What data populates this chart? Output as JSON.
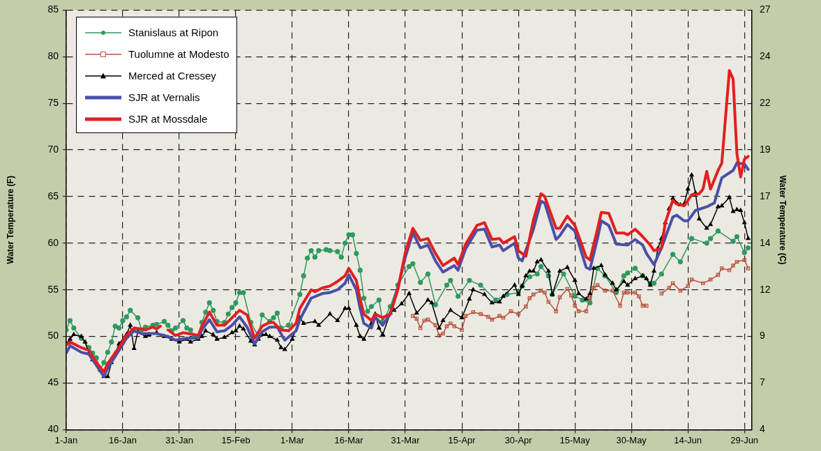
{
  "chart_data": {
    "type": "line",
    "ylabel": "Water Temperature (F)",
    "y2label": "Water Temperature (C)",
    "xlim": [
      "--01-01",
      "--07-01"
    ],
    "xticks": [
      {
        "value": "--01-01",
        "label": "1-Jan"
      },
      {
        "value": "--01-16",
        "label": "16-Jan"
      },
      {
        "value": "--01-31",
        "label": "31-Jan"
      },
      {
        "value": "--02-15",
        "label": "15-Feb"
      },
      {
        "value": "--03-01",
        "label": "1-Mar"
      },
      {
        "value": "--03-16",
        "label": "16-Mar"
      },
      {
        "value": "--03-31",
        "label": "31-Mar"
      },
      {
        "value": "--04-15",
        "label": "15-Apr"
      },
      {
        "value": "--04-30",
        "label": "30-Apr"
      },
      {
        "value": "--05-15",
        "label": "15-May"
      },
      {
        "value": "--05-30",
        "label": "30-May"
      },
      {
        "value": "--06-14",
        "label": "14-Jun"
      },
      {
        "value": "--06-29",
        "label": "29-Jun"
      }
    ],
    "ylim": [
      40,
      85
    ],
    "yticks": [
      40,
      45,
      50,
      55,
      60,
      65,
      70,
      75,
      80,
      85
    ],
    "y2lim": [
      4.4,
      26.9
    ],
    "y2ticks": [
      {
        "value": 4.4,
        "label": "4"
      },
      {
        "value": 6.9,
        "label": "7"
      },
      {
        "value": 9.4,
        "label": "9"
      },
      {
        "value": 11.9,
        "label": "12"
      },
      {
        "value": 14.4,
        "label": "14"
      },
      {
        "value": 16.9,
        "label": "17"
      },
      {
        "value": 19.4,
        "label": "19"
      },
      {
        "value": 21.9,
        "label": "22"
      },
      {
        "value": 24.4,
        "label": "24"
      },
      {
        "value": 26.9,
        "label": "27"
      }
    ],
    "grid": true,
    "legend": "top left",
    "line_style": "solid",
    "series": [
      {
        "name": "Stanislaus at Ripon",
        "color": "#2e9a5e",
        "marker": "circle",
        "x": [
          "--01-01",
          "--01-02",
          "--01-03",
          "--01-05",
          "--01-07",
          "--01-08",
          "--01-09",
          "--01-10",
          "--01-11",
          "--01-12",
          "--01-13",
          "--01-14",
          "--01-15",
          "--01-16",
          "--01-17",
          "--01-18",
          "--01-20",
          "--01-21",
          "--01-22",
          "--01-24",
          "--01-25",
          "--01-27",
          "--01-28",
          "--01-29",
          "--01-30",
          "--02-01",
          "--02-02",
          "--02-03",
          "--02-04",
          "--02-05",
          "--02-06",
          "--02-07",
          "--02-08",
          "--02-09",
          "--02-10",
          "--02-12",
          "--02-13",
          "--02-14",
          "--02-15",
          "--02-16",
          "--02-17",
          "--02-19",
          "--02-21",
          "--02-22",
          "--02-24",
          "--02-25",
          "--02-26",
          "--02-27",
          "--02-29",
          "--03-03",
          "--03-04",
          "--03-05",
          "--03-06",
          "--03-07",
          "--03-08",
          "--03-10",
          "--03-11",
          "--03-13",
          "--03-14",
          "--03-15",
          "--03-16",
          "--03-17",
          "--03-18",
          "--03-19",
          "--03-20",
          "--03-21",
          "--03-22",
          "--03-24",
          "--03-25",
          "--03-27",
          "--03-29",
          "--04-01",
          "--04-02",
          "--04-04",
          "--04-06",
          "--04-08",
          "--04-11",
          "--04-12",
          "--04-14",
          "--04-17",
          "--04-20",
          "--04-24",
          "--04-27",
          "--04-30",
          "--05-01",
          "--05-03",
          "--05-05",
          "--05-06",
          "--05-08",
          "--05-09",
          "--05-12",
          "--05-15",
          "--05-17",
          "--05-19",
          "--05-21",
          "--05-23",
          "--05-26",
          "--05-28",
          "--05-29",
          "--05-31",
          "--06-02",
          "--06-04",
          "--06-05",
          "--06-07",
          "--06-10",
          "--06-12",
          "--06-15",
          "--06-19",
          "--06-20",
          "--06-22",
          "--06-26",
          "--06-27",
          "--06-29",
          "--06-30"
        ],
        "values": [
          50.7,
          51.7,
          50.9,
          49.8,
          48.8,
          48.2,
          47.7,
          46.4,
          47.2,
          48.3,
          49.4,
          51.1,
          50.9,
          51.7,
          52.1,
          52.8,
          52,
          50.7,
          51,
          51.2,
          51.3,
          51.6,
          51.2,
          50.6,
          50.9,
          51.7,
          50.9,
          50.7,
          50,
          50,
          51.5,
          52.6,
          53.6,
          52.8,
          51.6,
          51.5,
          52.4,
          53.1,
          53.6,
          54.7,
          54.7,
          51.5,
          50,
          52.3,
          51.6,
          52,
          52.5,
          50.9,
          51.2,
          54.5,
          56.5,
          58.4,
          59.2,
          58.5,
          59.2,
          59.3,
          59.2,
          59.1,
          58.5,
          60,
          60.9,
          60.9,
          58.9,
          57.1,
          54.1,
          52.7,
          53.2,
          53.9,
          51.6,
          53.2,
          55.5,
          57.5,
          57.8,
          55.8,
          56.7,
          53.4,
          55.5,
          56,
          54.3,
          56,
          55.5,
          53.9,
          54.5,
          54.7,
          55.4,
          56.4,
          56.7,
          57.5,
          56.5,
          54.5,
          56.7,
          54.3,
          53.9,
          53.6,
          57.3,
          56.5,
          54.7,
          56.5,
          56.8,
          57.3,
          56.5,
          55.7,
          55.7,
          56.7,
          58.8,
          58,
          60.5,
          60,
          60.5,
          61.3,
          60.2,
          60.7,
          59,
          59.5
        ]
      },
      {
        "name": "Tuolumne at Modesto",
        "color": "#b5523a",
        "marker": "square",
        "x": [
          "--04-02",
          "--04-03",
          "--04-04",
          "--04-05",
          "--04-06",
          "--04-08",
          "--04-09",
          "--04-10",
          "--04-11",
          "--04-12",
          "--04-13",
          "--04-15",
          "--04-16",
          "--04-18",
          "--04-20",
          "--04-22",
          "--04-23",
          "--04-25",
          "--04-26",
          "--04-28",
          "--04-30",
          "--05-02",
          "--05-03",
          "--05-04",
          "--05-06",
          "--05-07",
          "--05-08",
          "--05-10",
          "--05-11",
          "--05-13",
          "--05-14",
          "--05-15",
          "--05-16",
          "--05-18",
          "--05-19",
          "--05-20",
          "--05-21",
          "--05-23",
          "--05-25",
          "--05-27",
          "--05-28",
          "--05-29",
          "--05-31",
          "--06-01",
          "--06-02",
          "--06-03",
          "--06-05",
          "--06-07",
          "--06-09",
          "--06-10",
          "--06-12",
          "--06-14",
          "--06-15",
          "--06-18",
          "--06-20",
          "--06-22",
          "--06-23",
          "--06-25",
          "--06-26",
          "--06-27",
          "--06-29",
          "--06-30"
        ],
        "values": [
          52.2,
          51.9,
          50.9,
          51.7,
          51.8,
          51.2,
          50.1,
          50.3,
          51.1,
          51.4,
          51.1,
          50.7,
          52.2,
          52.6,
          52.4,
          52.1,
          51.8,
          52.2,
          52,
          52.7,
          52.4,
          53.2,
          54.1,
          54.5,
          54.9,
          54.7,
          53.7,
          52.7,
          54.2,
          55.1,
          54.4,
          53.3,
          52.7,
          52.7,
          54.1,
          55.2,
          55.5,
          54.9,
          54.9,
          53.3,
          54.7,
          54.7,
          54.7,
          54.3,
          53.3,
          53.3,
          null,
          54.6,
          55.2,
          55.7,
          54.9,
          55.4,
          56.1,
          55.7,
          56.1,
          56.6,
          57.3,
          57.1,
          57.6,
          58,
          58.2,
          57.3
        ]
      },
      {
        "name": "Merced at Cressey",
        "color": "#000000",
        "marker": "triangle",
        "x": [
          "--01-01",
          "--01-02",
          "--01-03",
          "--01-05",
          "--01-06",
          "--01-07",
          "--01-08",
          "--01-10",
          "--01-11",
          "--01-12",
          "--01-13",
          "--01-14",
          "--01-15",
          "--01-17",
          "--01-18",
          "--01-19",
          "--01-20",
          "--01-22",
          "--01-23",
          "--01-25",
          "--01-27",
          "--01-29",
          "--01-31",
          "--02-02",
          "--02-03",
          "--02-05",
          "--02-06",
          "--02-07",
          "--02-09",
          "--02-10",
          "--02-12",
          "--02-14",
          "--02-15",
          "--02-16",
          "--02-17",
          "--02-19",
          "--02-20",
          "--02-21",
          "--02-22",
          "--02-23",
          "--02-24",
          "--02-26",
          "--02-27",
          "--02-28",
          "--03-01",
          "--03-03",
          "--03-04",
          "--03-07",
          "--03-08",
          "--03-11",
          "--03-13",
          "--03-15",
          "--03-16",
          "--03-18",
          "--03-19",
          "--03-20",
          "--03-22",
          "--03-23",
          "--03-24",
          "--03-25",
          "--03-27",
          "--03-28",
          "--03-30",
          "--04-01",
          "--04-03",
          "--04-06",
          "--04-07",
          "--04-09",
          "--04-10",
          "--04-12",
          "--04-15",
          "--04-17",
          "--04-18",
          "--04-21",
          "--04-23",
          "--04-25",
          "--04-26",
          "--04-29",
          "--04-30",
          "--05-01",
          "--05-02",
          "--05-03",
          "--05-04",
          "--05-05",
          "--05-06",
          "--05-08",
          "--05-09",
          "--05-11",
          "--05-13",
          "--05-15",
          "--05-16",
          "--05-18",
          "--05-19",
          "--05-20",
          "--05-22",
          "--05-23",
          "--05-25",
          "--05-26",
          "--05-28",
          "--05-29",
          "--05-31",
          "--06-02",
          "--06-03",
          "--06-04",
          "--06-05",
          "--06-06",
          "--06-07",
          "--06-08",
          "--06-09",
          "--06-10",
          "--06-12",
          "--06-13",
          "--06-14",
          "--06-15",
          "--06-16",
          "--06-17",
          "--06-19",
          "--06-20",
          "--06-22",
          "--06-23",
          "--06-25",
          "--06-26",
          "--06-27",
          "--06-28",
          "--06-29",
          "--06-30"
        ],
        "values": [
          49.2,
          49.7,
          50.2,
          50,
          49.4,
          48.2,
          47.5,
          46.6,
          45.7,
          45.7,
          47.2,
          48.2,
          49.2,
          50.2,
          51.2,
          48.7,
          50.5,
          50,
          50.2,
          50.4,
          50,
          49.7,
          49.4,
          49.7,
          49.4,
          49.7,
          50,
          50.6,
          50.2,
          49.7,
          49.9,
          50.4,
          50.6,
          51.1,
          50.8,
          49.5,
          49.1,
          49.7,
          50.2,
          50.2,
          50,
          49.6,
          48.8,
          48.6,
          49.7,
          52,
          51.4,
          51.6,
          51.2,
          52.4,
          51.7,
          53,
          53,
          51.2,
          50,
          49.7,
          51.4,
          52.4,
          50.9,
          50.2,
          52.5,
          52.8,
          53.5,
          54.6,
          52.5,
          53.9,
          53.6,
          50.9,
          51.7,
          52.8,
          52,
          54,
          55,
          54.5,
          53.6,
          53.7,
          54.3,
          55.5,
          54.5,
          55.4,
          56.5,
          57,
          57,
          58,
          58.2,
          57,
          54.5,
          57,
          57.4,
          56,
          54.6,
          54,
          54.6,
          57.3,
          57.6,
          56.6,
          55.7,
          55,
          55.9,
          55.5,
          56.2,
          56.5,
          56.2,
          55.5,
          57,
          59.4,
          60.5,
          62.2,
          63.7,
          64.8,
          64.1,
          64.2,
          65.8,
          67.3,
          65.4,
          62.6,
          61.6,
          62,
          63.9,
          64,
          64.9,
          63.4,
          63.6,
          63.5,
          62.2,
          60.5
        ]
      },
      {
        "name": "SJR at Vernalis",
        "color": "#4a4fa8",
        "marker": "none",
        "x": [
          "--01-01",
          "--01-02",
          "--01-05",
          "--01-07",
          "--01-09",
          "--01-11",
          "--01-12",
          "--01-15",
          "--01-17",
          "--01-19",
          "--01-21",
          "--01-25",
          "--01-28",
          "--01-30",
          "--02-02",
          "--02-05",
          "--02-06",
          "--02-08",
          "--02-10",
          "--02-12",
          "--02-14",
          "--02-16",
          "--02-18",
          "--02-20",
          "--02-22",
          "--02-24",
          "--02-26",
          "--02-28",
          "--03-02",
          "--03-03",
          "--03-06",
          "--03-09",
          "--03-11",
          "--03-13",
          "--03-15",
          "--03-16",
          "--03-18",
          "--03-19",
          "--03-20",
          "--03-22",
          "--03-23",
          "--03-25",
          "--03-27",
          "--03-29",
          "--03-31",
          "--04-02",
          "--04-04",
          "--04-06",
          "--04-08",
          "--04-10",
          "--04-13",
          "--04-14",
          "--04-16",
          "--04-19",
          "--04-21",
          "--04-23",
          "--04-25",
          "--04-26",
          "--04-29",
          "--04-30",
          "--05-01",
          "--05-04",
          "--05-06",
          "--05-07",
          "--05-10",
          "--05-11",
          "--05-13",
          "--05-15",
          "--05-18",
          "--05-19",
          "--05-21",
          "--05-22",
          "--05-24",
          "--05-26",
          "--05-29",
          "--05-31",
          "--06-02",
          "--06-03",
          "--06-05",
          "--06-07",
          "--06-10",
          "--06-11",
          "--06-13",
          "--06-14",
          "--06-16",
          "--06-19",
          "--06-21",
          "--06-23",
          "--06-26",
          "--06-27",
          "--06-29",
          "--06-30"
        ],
        "values": [
          48.2,
          49,
          48.3,
          48.1,
          46.9,
          45.7,
          46.6,
          48.5,
          49.8,
          50.6,
          50.3,
          50.3,
          50,
          49.6,
          49.8,
          49.8,
          50.7,
          51.8,
          50.5,
          50.6,
          51.2,
          52.1,
          51,
          49.2,
          50.5,
          51,
          51,
          49.6,
          50.6,
          51.8,
          54.1,
          54.6,
          54.7,
          55,
          55.7,
          56.6,
          55,
          53,
          51.4,
          50.9,
          52.1,
          51.2,
          52.4,
          55.2,
          58.5,
          61.1,
          59.5,
          59.8,
          58.1,
          56.9,
          57.6,
          57.1,
          59.4,
          61.4,
          61.5,
          59.6,
          59.8,
          59.2,
          60,
          58.4,
          58.1,
          61.5,
          64.5,
          64.3,
          60.4,
          60.8,
          62,
          61.3,
          57.4,
          57.2,
          60.5,
          62.4,
          61.9,
          59.9,
          59.8,
          60.4,
          59.8,
          58.9,
          57.7,
          59.5,
          62.8,
          63,
          62.4,
          62.4,
          63.5,
          63.9,
          64.3,
          67,
          67.8,
          68.6,
          68.5,
          67.9
        ]
      },
      {
        "name": "SJR at Mossdale",
        "color": "#e02020",
        "marker": "none",
        "x": [
          "--01-01",
          "--01-02",
          "--01-05",
          "--01-07",
          "--01-09",
          "--01-11",
          "--01-12",
          "--01-15",
          "--01-17",
          "--01-19",
          "--01-21",
          "--01-22",
          "--01-24",
          "--01-25",
          "--01-26",
          "--01-27",
          "--01-28",
          "--01-30",
          "--02-01",
          "--02-04",
          "--02-05",
          "--02-06",
          "--02-08",
          "--02-10",
          "--02-12",
          "--02-14",
          "--02-16",
          "--02-18",
          "--02-20",
          "--02-22",
          "--02-24",
          "--02-25",
          "--02-27",
          "--02-29",
          "--03-02",
          "--03-03",
          "--03-06",
          "--03-07",
          "--03-09",
          "--03-11",
          "--03-13",
          "--03-15",
          "--03-16",
          "--03-18",
          "--03-19",
          "--03-20",
          "--03-22",
          "--03-23",
          "--03-25",
          "--03-27",
          "--03-29",
          "--03-31",
          "--04-02",
          "--04-04",
          "--04-06",
          "--04-08",
          "--04-10",
          "--04-13",
          "--04-14",
          "--04-16",
          "--04-19",
          "--04-21",
          "--04-23",
          "--04-25",
          "--04-26",
          "--04-29",
          "--04-30",
          "--05-02",
          "--05-04",
          "--05-06",
          "--05-07",
          "--05-10",
          "--05-11",
          "--05-13",
          "--05-15",
          "--05-18",
          "--05-19",
          "--05-21",
          "--05-22",
          "--05-24",
          "--05-26",
          "--05-28",
          "--05-29",
          "--05-31",
          "--06-02",
          "--06-04",
          "--06-05",
          "--06-07",
          "--06-08",
          "--06-10",
          "--06-11",
          "--06-13",
          "--06-15",
          "--06-17",
          "--06-18",
          "--06-19",
          "--06-20",
          "--06-22",
          "--06-23",
          "--06-25",
          "--06-26",
          "--06-27",
          "--06-28",
          "--06-29",
          "--06-30"
        ],
        "values": [
          49.1,
          49.4,
          48.8,
          48.5,
          47.2,
          46.2,
          47.1,
          48.8,
          50.1,
          50.9,
          50.8,
          50.7,
          51,
          50.8,
          51.1,
          null,
          50.7,
          50.1,
          50.4,
          50.2,
          50.1,
          51.1,
          52.6,
          51.2,
          51.2,
          52,
          52.8,
          52.3,
          49.8,
          51.1,
          51.5,
          51.5,
          50.7,
          50.6,
          51.4,
          53,
          55,
          54.8,
          55.2,
          55.4,
          55.9,
          56.5,
          57.3,
          56,
          54,
          52.4,
          51.7,
          52.4,
          52,
          52.4,
          55,
          59,
          61.6,
          60.3,
          60.5,
          58.9,
          57.6,
          58.4,
          57.7,
          59.9,
          61.9,
          62.2,
          60.4,
          60.5,
          60,
          60.7,
          59.2,
          58.6,
          62.5,
          65.3,
          65,
          61.6,
          61.6,
          62.9,
          61.9,
          58.5,
          58.2,
          61.5,
          63.3,
          63.2,
          61.1,
          61.1,
          60.9,
          61.5,
          60.7,
          59.8,
          59.2,
          59.5,
          62.2,
          64.6,
          64.2,
          64,
          65.2,
          65.3,
          65.8,
          67.7,
          65.8,
          67.8,
          68.6,
          78.5,
          77.6,
          69.6,
          67.1,
          69,
          69.3
        ]
      }
    ]
  }
}
